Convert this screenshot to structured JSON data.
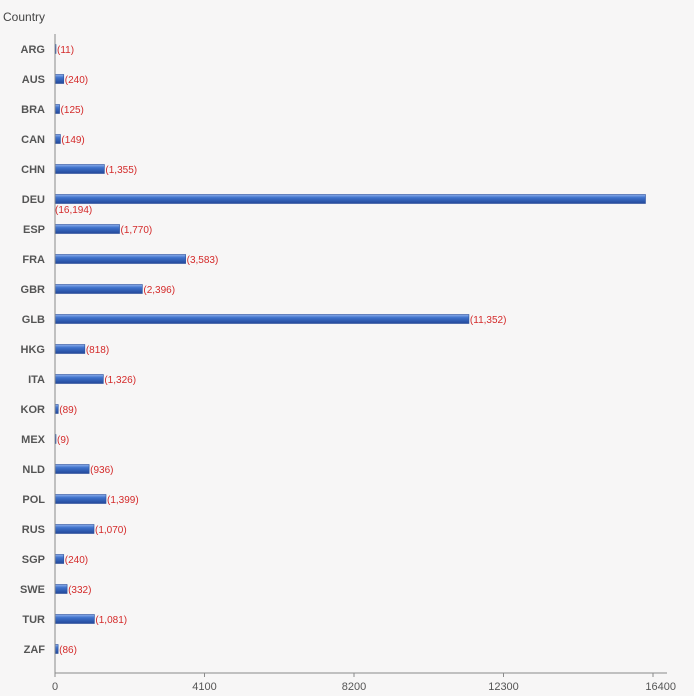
{
  "chart_data": {
    "type": "bar",
    "orientation": "horizontal",
    "ylabel": "Country",
    "categories": [
      "ARG",
      "AUS",
      "BRA",
      "CAN",
      "CHN",
      "DEU",
      "ESP",
      "FRA",
      "GBR",
      "GLB",
      "HKG",
      "ITA",
      "KOR",
      "MEX",
      "NLD",
      "POL",
      "RUS",
      "SGP",
      "SWE",
      "TUR",
      "ZAF"
    ],
    "values": [
      11,
      240,
      125,
      149,
      1355,
      16194,
      1770,
      3583,
      2396,
      11352,
      818,
      1326,
      89,
      9,
      936,
      1399,
      1070,
      240,
      332,
      1081,
      86
    ],
    "value_labels": [
      "(11)",
      "(240)",
      "(125)",
      "(149)",
      "(1,355)",
      "(16,194)",
      "(1,770)",
      "(3,583)",
      "(2,396)",
      "(11,352)",
      "(818)",
      "(1,326)",
      "(89)",
      "(9)",
      "(936)",
      "(1,399)",
      "(1,070)",
      "(240)",
      "(332)",
      "(1,081)",
      "(86)"
    ],
    "xlim": [
      0,
      16400
    ],
    "xticks": [
      0,
      4100,
      8200,
      12300,
      16400
    ],
    "xtick_labels": [
      "0",
      "4100",
      "8200",
      "12300",
      "16400"
    ],
    "grid": false,
    "bar_color": "#3a6cc4",
    "label_color": "#d42a2a"
  }
}
